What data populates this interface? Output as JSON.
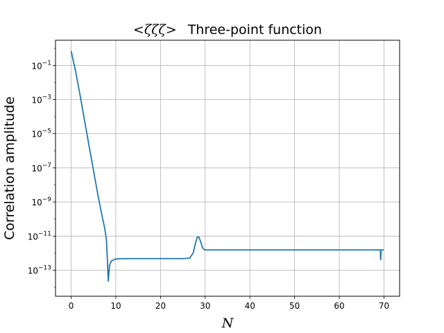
{
  "chart_data": {
    "type": "line",
    "title": "<ζζζ> Three-point function",
    "title_math": "<ζζζ>",
    "title_rest": "Three-point function",
    "xlabel": "N",
    "ylabel": "Correlation amplitude",
    "xscale": "linear",
    "yscale": "log",
    "xlim": [
      -3.5,
      73.5
    ],
    "ylim": [
      3e-15,
      3
    ],
    "grid": true,
    "line_color": "#1f77b4",
    "x_ticks": [
      {
        "value": 0,
        "label": "0"
      },
      {
        "value": 10,
        "label": "10"
      },
      {
        "value": 20,
        "label": "20"
      },
      {
        "value": 30,
        "label": "30"
      },
      {
        "value": 40,
        "label": "40"
      },
      {
        "value": 50,
        "label": "50"
      },
      {
        "value": 60,
        "label": "60"
      },
      {
        "value": 70,
        "label": "70"
      }
    ],
    "y_ticks": [
      {
        "exp": -1,
        "base": "10",
        "exponent": "−1"
      },
      {
        "exp": -3,
        "base": "10",
        "exponent": "−3"
      },
      {
        "exp": -5,
        "base": "10",
        "exponent": "−5"
      },
      {
        "exp": -7,
        "base": "10",
        "exponent": "−7"
      },
      {
        "exp": -9,
        "base": "10",
        "exponent": "−9"
      },
      {
        "exp": -11,
        "base": "10",
        "exponent": "−11"
      },
      {
        "exp": -13,
        "base": "10",
        "exponent": "−13"
      }
    ],
    "series": [
      {
        "x": [
          0,
          1,
          2,
          3,
          4,
          5,
          6,
          7,
          7.5,
          7.9,
          8.1,
          8.3,
          8.6,
          9,
          10,
          12,
          15,
          20,
          25,
          26.5,
          27.3,
          27.8,
          28.2,
          28.6,
          29,
          29.4,
          29.8,
          30.3,
          31,
          35,
          40,
          50,
          60,
          69,
          69.2,
          69.25,
          69.3,
          69.35,
          69.4,
          69.6,
          70
        ],
        "y": [
          0.7,
          0.045,
          0.0018,
          6e-05,
          2e-06,
          7e-08,
          2.5e-09,
          1.2e-10,
          3e-11,
          6e-12,
          5e-13,
          2.3e-14,
          2e-13,
          3.5e-13,
          4.6e-13,
          4.8e-13,
          4.8e-13,
          4.8e-13,
          4.8e-13,
          5.1e-13,
          1e-12,
          3.6e-12,
          8.5e-12,
          8.8e-12,
          4.5e-12,
          2.1e-12,
          1.6e-12,
          1.55e-12,
          1.55e-12,
          1.55e-12,
          1.55e-12,
          1.55e-12,
          1.55e-12,
          1.55e-12,
          1.55e-12,
          4.3e-13,
          4.3e-13,
          1.55e-12,
          1.55e-12,
          1.55e-12,
          1.55e-12
        ]
      }
    ]
  }
}
